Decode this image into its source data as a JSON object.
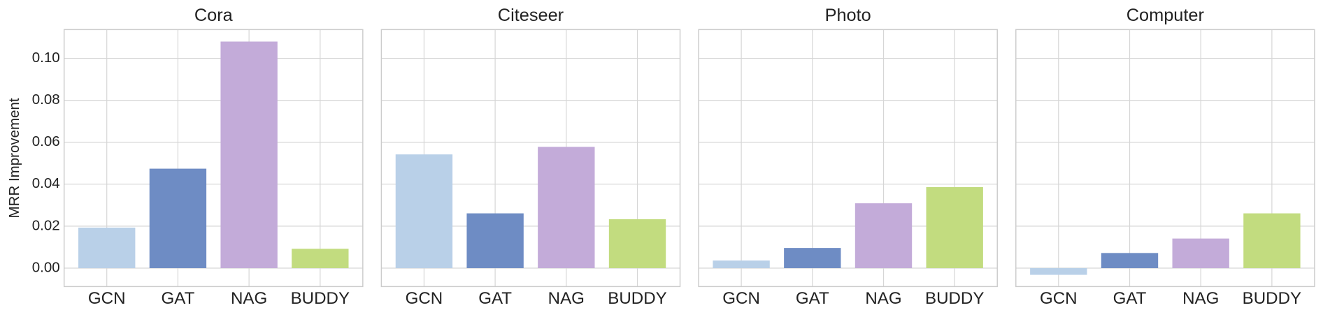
{
  "chart_data": [
    {
      "type": "bar",
      "title": "Cora",
      "ylabel": "MRR Improvement",
      "categories": [
        "GCN",
        "GAT",
        "NAG",
        "BUDDY"
      ],
      "values": [
        0.0193,
        0.0474,
        0.108,
        0.0092
      ],
      "colors": [
        "#b9d0e8",
        "#6e8cc4",
        "#c3abd9",
        "#c2dc7f"
      ],
      "ylim": [
        -0.0088,
        0.1137
      ],
      "yticks": [
        {
          "value": 0,
          "label": "0.00"
        },
        {
          "value": 0.02,
          "label": "0.02"
        },
        {
          "value": 0.04,
          "label": "0.04"
        },
        {
          "value": 0.06,
          "label": "0.06"
        },
        {
          "value": 0.08,
          "label": "0.08"
        },
        {
          "value": 0.1,
          "label": "0.10"
        }
      ],
      "grid": true
    },
    {
      "type": "bar",
      "title": "Citeseer",
      "categories": [
        "GCN",
        "GAT",
        "NAG",
        "BUDDY"
      ],
      "values": [
        0.0542,
        0.0261,
        0.0578,
        0.0233
      ],
      "colors": [
        "#b9d0e8",
        "#6e8cc4",
        "#c3abd9",
        "#c2dc7f"
      ],
      "ylim": [
        -0.0088,
        0.1137
      ],
      "yticks": [
        0,
        0.02,
        0.04,
        0.06,
        0.08,
        0.1
      ],
      "grid": true
    },
    {
      "type": "bar",
      "title": "Photo",
      "categories": [
        "GCN",
        "GAT",
        "NAG",
        "BUDDY"
      ],
      "values": [
        0.0036,
        0.0096,
        0.0309,
        0.0386
      ],
      "colors": [
        "#b9d0e8",
        "#6e8cc4",
        "#c3abd9",
        "#c2dc7f"
      ],
      "ylim": [
        -0.0088,
        0.1137
      ],
      "yticks": [
        0,
        0.02,
        0.04,
        0.06,
        0.08,
        0.1
      ],
      "grid": true
    },
    {
      "type": "bar",
      "title": "Computer",
      "categories": [
        "GCN",
        "GAT",
        "NAG",
        "BUDDY"
      ],
      "values": [
        -0.0032,
        0.0072,
        0.0141,
        0.0261
      ],
      "colors": [
        "#b9d0e8",
        "#6e8cc4",
        "#c3abd9",
        "#c2dc7f"
      ],
      "ylim": [
        -0.0088,
        0.1137
      ],
      "yticks": [
        0,
        0.02,
        0.04,
        0.06,
        0.08,
        0.1
      ],
      "grid": true
    }
  ]
}
